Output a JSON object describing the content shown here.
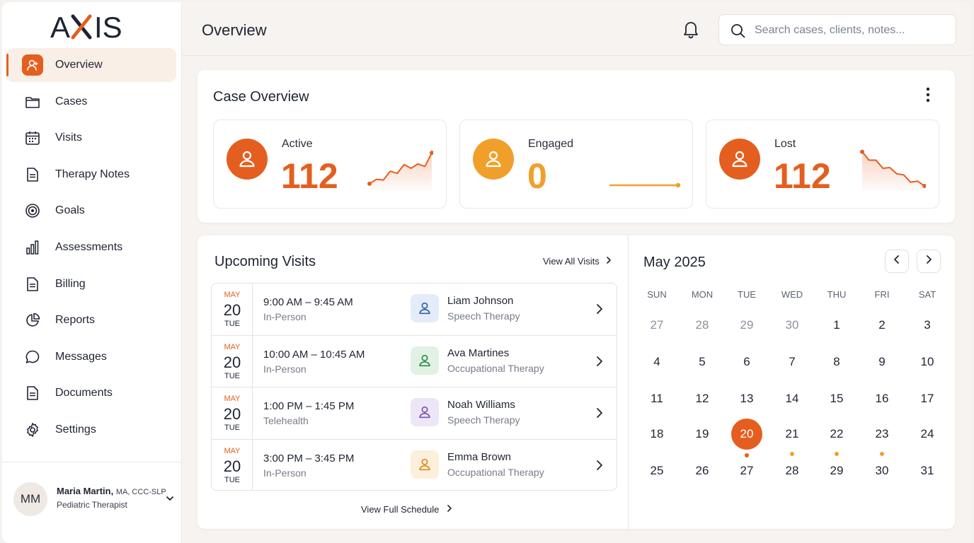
{
  "brand": {
    "name": "AXIS",
    "accent": "#e45f1f"
  },
  "sidebar": {
    "items": [
      {
        "label": "Overview",
        "icon": "user-icon",
        "active": true
      },
      {
        "label": "Cases",
        "icon": "folder-icon"
      },
      {
        "label": "Visits",
        "icon": "calendar-icon"
      },
      {
        "label": "Therapy Notes",
        "icon": "document-icon"
      },
      {
        "label": "Goals",
        "icon": "target-icon"
      },
      {
        "label": "Assessments",
        "icon": "bar-chart-icon"
      },
      {
        "label": "Billing",
        "icon": "document-icon"
      },
      {
        "label": "Reports",
        "icon": "pie-chart-icon"
      },
      {
        "label": "Messages",
        "icon": "chat-icon"
      },
      {
        "label": "Documents",
        "icon": "document-icon"
      },
      {
        "label": "Settings",
        "icon": "gear-icon"
      }
    ],
    "profile": {
      "initials": "MM",
      "name": "Maria Martin,",
      "credentials": "MA, CCC-SLP",
      "role": "Pediatric Therapist"
    }
  },
  "header": {
    "title": "Overview",
    "search_placeholder": "Search cases, clients, notes..."
  },
  "case_overview": {
    "title": "Case Overview",
    "stats": [
      {
        "label": "Active",
        "value": "112",
        "color": "#e45f1f",
        "trend": [
          0.08,
          0.2,
          0.18,
          0.42,
          0.36,
          0.6,
          0.5,
          0.62,
          0.55,
          0.92
        ]
      },
      {
        "label": "Engaged",
        "value": "0",
        "color": "#f0a02a",
        "trend": [
          0.5,
          0.5
        ]
      },
      {
        "label": "Lost",
        "value": "112",
        "color": "#e45f1f",
        "trend": [
          0.95,
          0.72,
          0.72,
          0.5,
          0.52,
          0.35,
          0.32,
          0.12,
          0.15,
          0.02
        ]
      }
    ]
  },
  "visits": {
    "title": "Upcoming Visits",
    "view_all": "View All Visits",
    "full_schedule": "View Full Schedule",
    "rows": [
      {
        "month": "MAY",
        "day": "20",
        "dow": "TUE",
        "time": "9:00 AM – 9:45 AM",
        "mode": "In-Person",
        "name": "Liam Johnson",
        "type": "Speech Therapy",
        "avatar_bg": "#e3ecf8",
        "avatar_fg": "#2f5fa8"
      },
      {
        "month": "MAY",
        "day": "20",
        "dow": "TUE",
        "time": "10:00 AM – 10:45 AM",
        "mode": "In-Person",
        "name": "Ava Martines",
        "type": "Occupational Therapy",
        "avatar_bg": "#e1f2e4",
        "avatar_fg": "#2f8a47"
      },
      {
        "month": "MAY",
        "day": "20",
        "dow": "TUE",
        "time": "1:00 PM – 1:45 PM",
        "mode": "Telehealth",
        "name": "Noah Williams",
        "type": "Speech Therapy",
        "avatar_bg": "#ede6f6",
        "avatar_fg": "#7a52b0"
      },
      {
        "month": "MAY",
        "day": "20",
        "dow": "TUE",
        "time": "3:00 PM – 3:45 PM",
        "mode": "In-Person",
        "name": "Emma Brown",
        "type": "Occupational Therapy",
        "avatar_bg": "#fcefdc",
        "avatar_fg": "#d98a1c"
      }
    ]
  },
  "calendar": {
    "title": "May 2025",
    "weekdays": [
      "SUN",
      "MON",
      "TUE",
      "WED",
      "THU",
      "FRI",
      "SAT"
    ],
    "weeks": [
      [
        {
          "d": "27",
          "muted": true
        },
        {
          "d": "28",
          "muted": true
        },
        {
          "d": "29",
          "muted": true
        },
        {
          "d": "30",
          "muted": true
        },
        {
          "d": "1"
        },
        {
          "d": "2"
        },
        {
          "d": "3"
        }
      ],
      [
        {
          "d": "4"
        },
        {
          "d": "5"
        },
        {
          "d": "6"
        },
        {
          "d": "7"
        },
        {
          "d": "8"
        },
        {
          "d": "9"
        },
        {
          "d": "10"
        }
      ],
      [
        {
          "d": "11"
        },
        {
          "d": "12"
        },
        {
          "d": "13"
        },
        {
          "d": "14"
        },
        {
          "d": "15"
        },
        {
          "d": "16"
        },
        {
          "d": "17"
        }
      ],
      [
        {
          "d": "18"
        },
        {
          "d": "19"
        },
        {
          "d": "20",
          "selected": true,
          "dot": "orange"
        },
        {
          "d": "21",
          "dot": "amber"
        },
        {
          "d": "22",
          "dot": "amber"
        },
        {
          "d": "23",
          "dot": "amber"
        },
        {
          "d": "24"
        }
      ],
      [
        {
          "d": "25"
        },
        {
          "d": "26"
        },
        {
          "d": "27"
        },
        {
          "d": "28"
        },
        {
          "d": "29"
        },
        {
          "d": "30"
        },
        {
          "d": "31"
        }
      ]
    ]
  }
}
